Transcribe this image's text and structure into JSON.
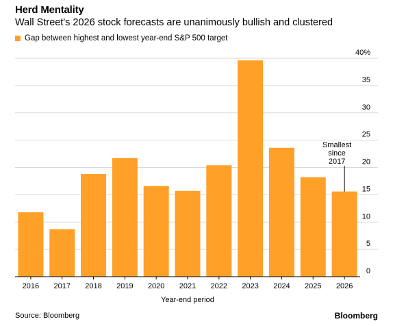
{
  "colors": {
    "bar": "#FFA028",
    "grid": "#d9d9d9",
    "axis": "#000000"
  },
  "source": "Source: Bloomberg",
  "brand": "Bloomberg",
  "chart_data": {
    "type": "bar",
    "title": "Herd Mentality",
    "subtitle": "Wall Street's 2026 stock forecasts are unanimously bullish and clustered",
    "legend": "Gap between highest and lowest year-end S&P 500 target",
    "xlabel": "Year-end period",
    "ylabel": "",
    "categories": [
      "2016",
      "2017",
      "2018",
      "2019",
      "2020",
      "2021",
      "2022",
      "2023",
      "2024",
      "2025",
      "2026"
    ],
    "values": [
      11.8,
      8.7,
      18.8,
      21.7,
      16.6,
      15.7,
      20.4,
      39.6,
      23.6,
      18.2,
      15.6
    ],
    "ylim": [
      0,
      40
    ],
    "yticks": [
      0,
      5,
      10,
      15,
      20,
      25,
      30,
      35,
      40
    ],
    "ytick_labels": [
      "0",
      "5",
      "10",
      "15",
      "20",
      "25",
      "30",
      "35",
      "40%"
    ],
    "y_axis_position": "right",
    "grid": true,
    "annotation": {
      "category": "2026",
      "lines": [
        "Smallest",
        "since",
        "2017"
      ]
    }
  }
}
